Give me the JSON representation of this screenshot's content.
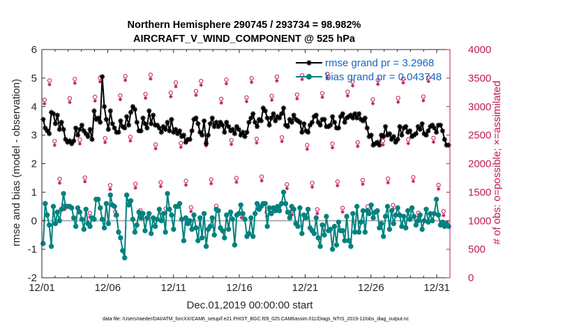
{
  "title_line1": "Northern Hemisphere 290745 / 293734 = 98.982%",
  "title_line2": "AIRCRAFT_V_WIND_COMPONENT @ 525 hPa",
  "footer": "data file: /Users/raeder/DAI/ATM_forcXX/CAM6_setup/f.e21.FHIST_BGC.f09_025.CAM6assim.011/Diags_NTrS_2019-12/obs_diag_output.nc",
  "colors": {
    "rmse": "#000000",
    "bias": "#00827f",
    "obs": "#c2185b",
    "zero": "#b0b0b0",
    "legend_text": "#1565c0"
  },
  "chart_data": {
    "type": "line",
    "xlabel": "Dec.01,2019 00:00:00 start",
    "ylabel": "rmse and bias (model - observation)",
    "ylabel_right": "# of obs: o=possible; ×=assimilated",
    "xlim": [
      0,
      31
    ],
    "ylim": [
      -2,
      6
    ],
    "ylim_right": [
      0,
      4000
    ],
    "xticks": [
      0,
      5,
      10,
      15,
      20,
      25,
      30
    ],
    "xtick_labels": [
      "12/01",
      "12/06",
      "12/11",
      "12/16",
      "12/21",
      "12/26",
      "12/31"
    ],
    "yticks": [
      -2,
      -1,
      0,
      1,
      2,
      3,
      4,
      5,
      6
    ],
    "ytick_labels": [
      "-2",
      "-1",
      "0",
      "1",
      "2",
      "3",
      "4",
      "5",
      "6"
    ],
    "yticks_right": [
      0,
      500,
      1000,
      1500,
      2000,
      2500,
      3000,
      3500,
      4000
    ],
    "ytick_labels_right": [
      "0",
      "500",
      "1000",
      "1500",
      "2000",
      "2500",
      "3000",
      "3500",
      "4000"
    ],
    "legend_position": "top-right",
    "series": [
      {
        "name": "rmse grand pr = 3.2968",
        "marker": "asterisk",
        "values": [
          3.55,
          3.25,
          3.15,
          3.05,
          3.8,
          3.75,
          3.4,
          3.7,
          3.2,
          3.45,
          3.2,
          2.85,
          2.75,
          2.8,
          2.7,
          2.8,
          3.25,
          3.0,
          3.2,
          3.35,
          3.15,
          3.05,
          2.95,
          3.2,
          2.85,
          3.85,
          3.55,
          3.6,
          3.45,
          5.05,
          4.0,
          3.55,
          3.2,
          3.85,
          3.4,
          3.25,
          3.1,
          3.1,
          3.5,
          3.3,
          3.25,
          3.65,
          3.35,
          3.8,
          4.0,
          3.9,
          3.45,
          3.15,
          3.15,
          3.6,
          3.4,
          3.25,
          3.85,
          3.4,
          3.7,
          3.35,
          3.35,
          3.25,
          3.1,
          3.3,
          3.2,
          3.45,
          3.15,
          3.55,
          3.1,
          3.2,
          3.05,
          3.15,
          2.95,
          3.0,
          2.75,
          2.85,
          2.85,
          3.15,
          3.55,
          3.6,
          3.4,
          3.1,
          3.0,
          3.5,
          2.7,
          3.0,
          3.4,
          3.6,
          3.3,
          3.45,
          3.3,
          3.45,
          3.35,
          3.1,
          3.45,
          3.3,
          3.15,
          3.2,
          3.05,
          3.3,
          3.2,
          3.0,
          3.1,
          2.95,
          3.1,
          3.45,
          3.6,
          3.75,
          3.45,
          3.3,
          3.55,
          3.5,
          3.95,
          3.85,
          3.6,
          3.35,
          3.6,
          3.75,
          3.5,
          3.65,
          3.6,
          3.75,
          3.95,
          3.35,
          3.3,
          3.55,
          3.45,
          3.7,
          3.55,
          3.5,
          3.45,
          3.1,
          3.4,
          3.15,
          3.1,
          3.35,
          3.45,
          3.65,
          3.7,
          3.45,
          3.35,
          3.55,
          3.55,
          3.3,
          3.3,
          3.35,
          3.65,
          3.45,
          3.25,
          3.25,
          3.65,
          3.75,
          3.45,
          3.6,
          3.65,
          3.7,
          3.6,
          3.75,
          3.6,
          3.75,
          3.55,
          3.5,
          3.6,
          3.25,
          2.95,
          3.0,
          2.65,
          2.7,
          2.75,
          2.65,
          3.0,
          2.95,
          3.3,
          3.0,
          3.05,
          2.85,
          2.95,
          2.75,
          2.85,
          3.3,
          3.0,
          3.25,
          3.3,
          3.1,
          3.15,
          2.95,
          3.0,
          3.05,
          3.3,
          3.2,
          3.4,
          3.05,
          3.0,
          3.15,
          3.3,
          3.35,
          3.25,
          3.1,
          3.35,
          3.35,
          3.15,
          2.85,
          2.65,
          2.65
        ]
      },
      {
        "name": "bias grand pr = 0.043748",
        "marker": "circle",
        "values": [
          -0.8,
          0.6,
          0.2,
          -0.15,
          -0.9,
          0.5,
          -0.1,
          0.3,
          0.0,
          0.4,
          0.95,
          0.5,
          0.5,
          0.5,
          0.45,
          0.1,
          -0.2,
          0.45,
          0.3,
          0.05,
          -0.3,
          0.4,
          -0.1,
          -0.2,
          0.1,
          0.05,
          0.75,
          0.75,
          0.45,
          0.05,
          -0.25,
          0.6,
          -0.1,
          0.9,
          0.55,
          0.5,
          0.2,
          -0.4,
          -0.6,
          -1.05,
          -1.3,
          0.9,
          0.55,
          0.7,
          0.05,
          -0.4,
          -0.15,
          0.3,
          0.1,
          0.25,
          -0.35,
          0.1,
          0.25,
          -0.45,
          0.1,
          -0.2,
          0.05,
          0.4,
          0.0,
          0.25,
          -0.4,
          0.95,
          0.4,
          0.2,
          -0.3,
          0.5,
          0.5,
          0.6,
          0.05,
          -0.7,
          0.1,
          -0.1,
          0.0,
          -0.3,
          0.2,
          -0.25,
          -0.7,
          0.1,
          -0.6,
          0.25,
          -0.9,
          -0.3,
          -0.2,
          0.1,
          -0.5,
          0.4,
          0.35,
          -0.25,
          -0.35,
          -0.6,
          0.2,
          -0.3,
          0.3,
          0.05,
          -0.85,
          0.2,
          0.25,
          0.55,
          0.25,
          0.05,
          -0.55,
          -0.45,
          0.1,
          -0.55,
          0.25,
          0.6,
          0.4,
          0.5,
          0.6,
          0.6,
          -0.2,
          0.45,
          0.25,
          0.45,
          0.35,
          0.5,
          0.35,
          0.6,
          1.0,
          0.6,
          0.3,
          0.1,
          0.5,
          0.4,
          -0.1,
          -0.2,
          0.45,
          -0.45,
          0.2,
          0.1,
          0.4,
          -0.25,
          -0.35,
          -0.45,
          0.1,
          -0.6,
          -0.9,
          -0.15,
          -0.5,
          0.15,
          -0.35,
          -0.3,
          -1.0,
          -0.2,
          -0.85,
          -0.05,
          -0.35,
          -0.35,
          -0.7,
          0.15,
          -0.7,
          -0.9,
          0.25,
          -0.4,
          0.5,
          -0.4,
          -0.05,
          0.35,
          -0.4,
          0.35,
          0.25,
          0.55,
          0.1,
          0.3,
          0.35,
          -0.25,
          -0.1,
          -0.55,
          0.15,
          0.5,
          -0.3,
          0.35,
          -0.1,
          0.2,
          0.45,
          0.2,
          -0.2,
          0.15,
          -0.25,
          0.35,
          0.05,
          0.45,
          0.15,
          -0.15,
          0.0,
          0.2,
          -0.3,
          0.0,
          0.4,
          -0.05,
          0.25,
          0.0,
          0.25,
          0.75,
          0.2,
          -0.15,
          -0.05,
          -0.2,
          -0.1,
          -0.2
        ]
      }
    ]
  }
}
